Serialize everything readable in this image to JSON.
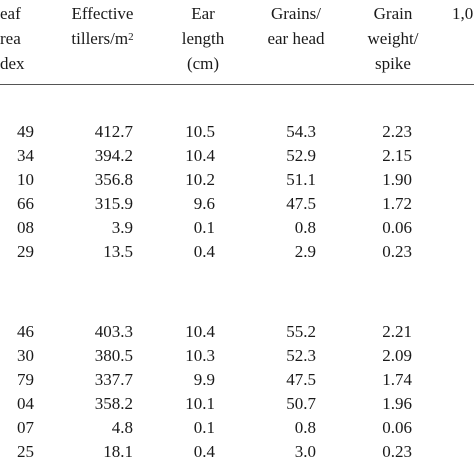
{
  "table": {
    "headers": [
      {
        "id": "leaf-area-index",
        "lines": [
          "eaf",
          "rea",
          "dex"
        ]
      },
      {
        "id": "effective-tillers",
        "lines": [
          "Effective",
          "tillers/m²"
        ]
      },
      {
        "id": "ear-length",
        "lines": [
          "Ear",
          "length",
          "(cm)"
        ]
      },
      {
        "id": "grains-ear-head",
        "lines": [
          "Grains/",
          "ear head"
        ]
      },
      {
        "id": "grain-weight-spike",
        "lines": [
          "Grain",
          "weight/",
          "spike"
        ]
      },
      {
        "id": "partial-col",
        "lines": [
          "1,0"
        ]
      }
    ],
    "group1": [
      [
        "49",
        "412.7",
        "10.5",
        "54.3",
        "2.23"
      ],
      [
        "34",
        "394.2",
        "10.4",
        "52.9",
        "2.15"
      ],
      [
        "10",
        "356.8",
        "10.2",
        "51.1",
        "1.90"
      ],
      [
        "66",
        "315.9",
        "9.6",
        "47.5",
        "1.72"
      ],
      [
        "08",
        "3.9",
        "0.1",
        "0.8",
        "0.06"
      ],
      [
        "29",
        "13.5",
        "0.4",
        "2.9",
        "0.23"
      ]
    ],
    "group2": [
      [
        "46",
        "403.3",
        "10.4",
        "55.2",
        "2.21"
      ],
      [
        "30",
        "380.5",
        "10.3",
        "52.3",
        "2.09"
      ],
      [
        "79",
        "337.7",
        "9.9",
        "47.5",
        "1.74"
      ],
      [
        "04",
        "358.2",
        "10.1",
        "50.7",
        "1.96"
      ],
      [
        "07",
        "4.8",
        "0.1",
        "0.8",
        "0.06"
      ],
      [
        "25",
        "18.1",
        "0.4",
        "3.0",
        "0.23"
      ]
    ]
  }
}
